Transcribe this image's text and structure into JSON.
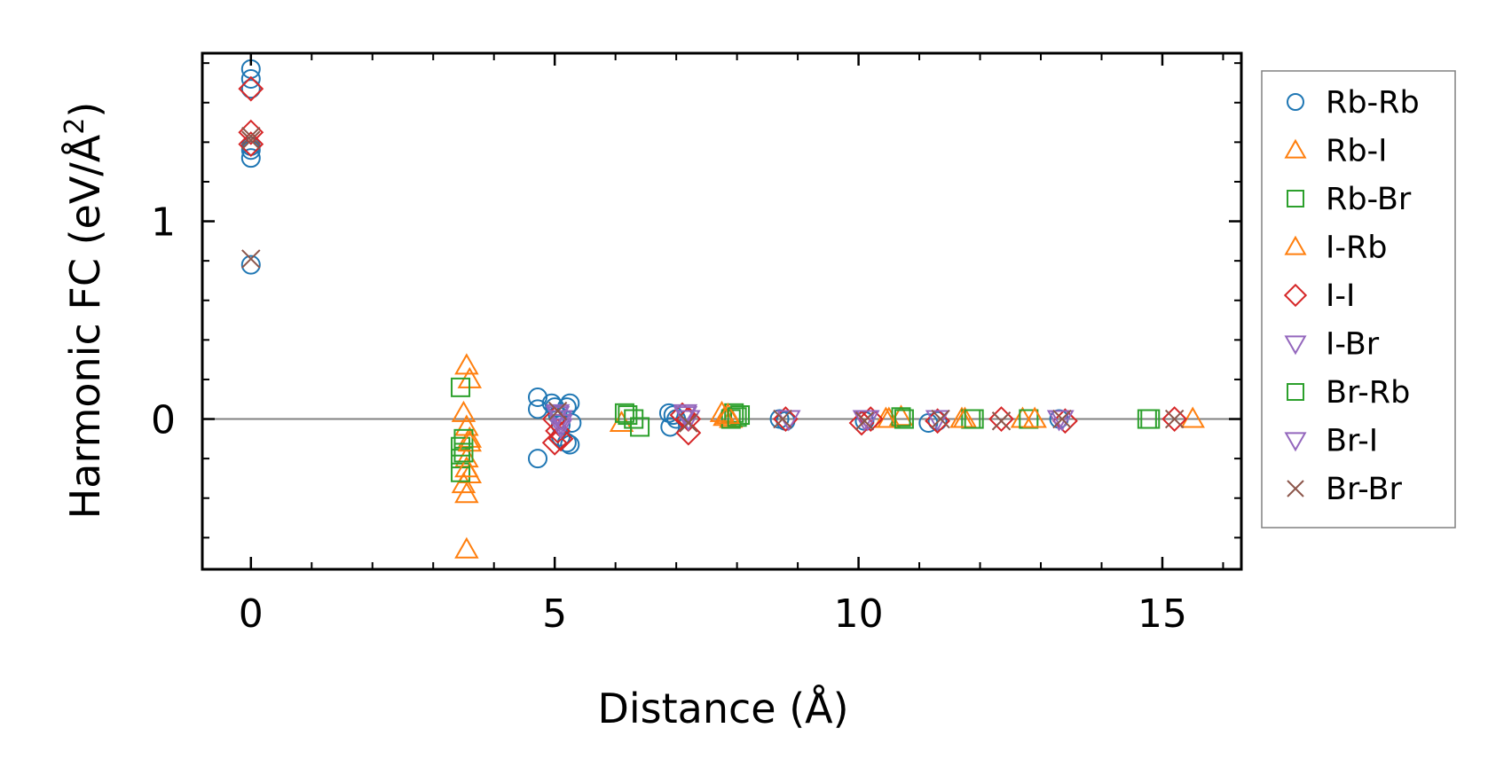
{
  "chart_data": {
    "type": "scatter",
    "title": "",
    "xlabel": "Distance (Å)",
    "ylabel_prefix": "Harmonic FC (eV/Å",
    "ylabel_sup": "2",
    "ylabel_suffix": ")",
    "xlim": [
      -0.8,
      16.3
    ],
    "ylim": [
      -0.76,
      1.85
    ],
    "xticks": [
      0,
      5,
      10,
      15
    ],
    "xtick_labels": [
      "0",
      "5",
      "10",
      "15"
    ],
    "xminor": [
      1,
      2,
      3,
      4,
      6,
      7,
      8,
      9,
      11,
      12,
      13,
      14,
      16
    ],
    "yticks": [
      0,
      1
    ],
    "ytick_labels": [
      "0",
      "1"
    ],
    "yminor": [
      -0.6,
      -0.4,
      -0.2,
      0.2,
      0.4,
      0.6,
      0.8,
      1.2,
      1.4,
      1.6,
      1.8
    ],
    "hline": 0,
    "hline_color": "#808080",
    "legend_position": "outside-right",
    "series": [
      {
        "name": "Rb-Rb",
        "marker": "circle",
        "color": "#1f77b4",
        "points": [
          [
            0,
            1.77
          ],
          [
            0,
            1.72
          ],
          [
            0,
            1.67
          ],
          [
            0,
            1.38
          ],
          [
            0,
            1.36
          ],
          [
            0,
            1.32
          ],
          [
            0,
            0.78
          ],
          [
            4.72,
            0.11
          ],
          [
            4.72,
            0.05
          ],
          [
            4.72,
            -0.2
          ],
          [
            4.95,
            0.08
          ],
          [
            5.0,
            0.06
          ],
          [
            5.05,
            0.02
          ],
          [
            5.1,
            -0.03
          ],
          [
            5.2,
            0.06
          ],
          [
            5.25,
            0.08
          ],
          [
            5.2,
            -0.12
          ],
          [
            5.25,
            -0.13
          ],
          [
            5.1,
            -0.09
          ],
          [
            5.28,
            -0.02
          ],
          [
            6.88,
            0.03
          ],
          [
            6.95,
            0.02
          ],
          [
            6.9,
            -0.04
          ],
          [
            7.0,
            0.0
          ],
          [
            8.7,
            0.0
          ],
          [
            8.8,
            -0.01
          ],
          [
            10.1,
            -0.01
          ],
          [
            11.15,
            -0.02
          ],
          [
            11.3,
            -0.01
          ],
          [
            13.3,
            0.0
          ]
        ]
      },
      {
        "name": "Rb-I",
        "marker": "triangle-up",
        "color": "#ff7f0e",
        "points": [
          [
            3.55,
            0.27
          ],
          [
            3.6,
            0.2
          ],
          [
            3.5,
            0.03
          ],
          [
            3.55,
            -0.04
          ],
          [
            3.6,
            -0.1
          ],
          [
            3.55,
            -0.2
          ],
          [
            3.6,
            -0.28
          ],
          [
            3.5,
            -0.33
          ],
          [
            3.55,
            -0.38
          ],
          [
            3.55,
            -0.66
          ],
          [
            6.1,
            -0.02
          ],
          [
            7.8,
            0.01
          ],
          [
            7.9,
            0.0
          ],
          [
            10.5,
            0.0
          ],
          [
            10.7,
            0.01
          ],
          [
            11.7,
            0.0
          ],
          [
            12.7,
            0.0
          ],
          [
            15.5,
            0.0
          ]
        ]
      },
      {
        "name": "Rb-Br",
        "marker": "square",
        "color": "#2ca02c",
        "points": [
          [
            3.45,
            0.16
          ],
          [
            3.45,
            -0.14
          ],
          [
            3.45,
            -0.2
          ],
          [
            3.45,
            -0.27
          ],
          [
            3.5,
            -0.1
          ],
          [
            6.15,
            0.03
          ],
          [
            6.3,
            0.0
          ],
          [
            6.4,
            -0.04
          ],
          [
            7.95,
            0.03
          ],
          [
            8.05,
            0.02
          ],
          [
            7.9,
            0.0
          ],
          [
            10.7,
            0.01
          ],
          [
            11.85,
            0.0
          ],
          [
            12.8,
            0.0
          ],
          [
            14.75,
            0.0
          ]
        ]
      },
      {
        "name": "I-Rb",
        "marker": "triangle-up",
        "color": "#ff7f0e",
        "points": [
          [
            3.6,
            -0.12
          ],
          [
            3.55,
            -0.25
          ],
          [
            7.75,
            0.03
          ],
          [
            7.85,
            0.02
          ],
          [
            10.45,
            0.0
          ],
          [
            11.75,
            0.0
          ],
          [
            12.9,
            0.0
          ]
        ]
      },
      {
        "name": "I-I",
        "marker": "diamond",
        "color": "#d62728",
        "points": [
          [
            0,
            1.67
          ],
          [
            0,
            1.45
          ],
          [
            0,
            1.39
          ],
          [
            5.0,
            0.0
          ],
          [
            5.05,
            -0.06
          ],
          [
            5.1,
            -0.1
          ],
          [
            5.0,
            -0.12
          ],
          [
            7.2,
            0.0
          ],
          [
            7.2,
            -0.07
          ],
          [
            7.1,
            0.02
          ],
          [
            8.8,
            0.0
          ],
          [
            10.05,
            -0.02
          ],
          [
            10.2,
            0.0
          ],
          [
            11.3,
            -0.01
          ],
          [
            12.35,
            0.0
          ],
          [
            13.4,
            -0.01
          ],
          [
            15.2,
            0.0
          ]
        ]
      },
      {
        "name": "I-Br",
        "marker": "triangle-down",
        "color": "#9467bd",
        "points": [
          [
            5.05,
            0.03
          ],
          [
            5.1,
            0.0
          ],
          [
            5.1,
            -0.04
          ],
          [
            7.15,
            0.03
          ],
          [
            7.2,
            0.0
          ],
          [
            10.1,
            0.0
          ],
          [
            11.3,
            0.0
          ],
          [
            13.35,
            0.0
          ]
        ]
      },
      {
        "name": "Br-Rb",
        "marker": "square",
        "color": "#2ca02c",
        "points": [
          [
            3.5,
            -0.17
          ],
          [
            6.2,
            0.02
          ],
          [
            8.0,
            0.01
          ],
          [
            10.75,
            0.0
          ],
          [
            11.9,
            0.0
          ],
          [
            14.8,
            0.0
          ]
        ]
      },
      {
        "name": "Br-I",
        "marker": "triangle-down",
        "color": "#9467bd",
        "points": [
          [
            5.05,
            0.02
          ],
          [
            5.1,
            -0.02
          ],
          [
            7.15,
            0.02
          ],
          [
            8.85,
            0.0
          ],
          [
            10.15,
            0.0
          ],
          [
            13.3,
            0.0
          ]
        ]
      },
      {
        "name": "Br-Br",
        "marker": "x",
        "color": "#8c564b",
        "points": [
          [
            0,
            1.43
          ],
          [
            0,
            1.41
          ],
          [
            0,
            0.81
          ],
          [
            5.05,
            0.04
          ],
          [
            7.2,
            -0.02
          ],
          [
            8.75,
            0.0
          ],
          [
            10.1,
            -0.01
          ],
          [
            11.35,
            0.0
          ],
          [
            12.35,
            -0.01
          ],
          [
            13.35,
            0.0
          ],
          [
            15.2,
            0.0
          ]
        ]
      }
    ]
  }
}
